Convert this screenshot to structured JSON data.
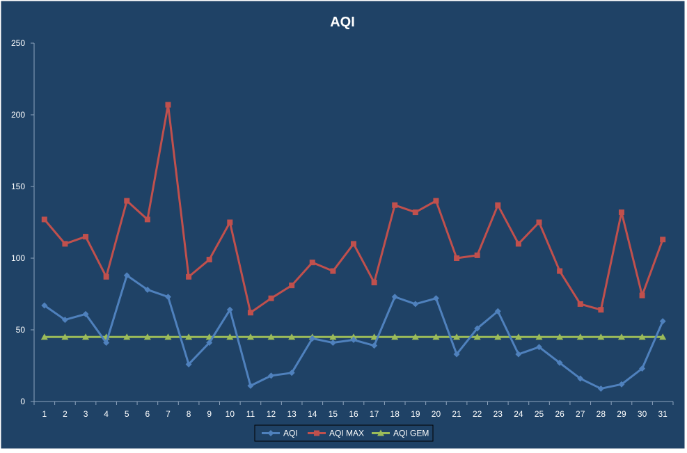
{
  "colors": {
    "background": "#1F4266",
    "frame": "#FFFFFF",
    "text": "#FFFFFF",
    "axis": "#8EA4BD",
    "aqi": "#4F81BD",
    "aqi_max": "#C0504D",
    "aqi_gem": "#9BBB59"
  },
  "chart_data": {
    "type": "line",
    "title": "AQI",
    "xlabel": "",
    "ylabel": "",
    "ylim": [
      0,
      250
    ],
    "yticks": [
      0,
      50,
      100,
      150,
      200,
      250
    ],
    "grid": false,
    "legend_position": "bottom",
    "categories": [
      "1",
      "2",
      "3",
      "4",
      "5",
      "6",
      "7",
      "8",
      "9",
      "10",
      "11",
      "12",
      "13",
      "14",
      "15",
      "16",
      "17",
      "18",
      "19",
      "20",
      "21",
      "22",
      "23",
      "24",
      "25",
      "26",
      "27",
      "28",
      "29",
      "30",
      "31"
    ],
    "series": [
      {
        "name": "AQI",
        "marker": "diamond",
        "color": "#4F81BD",
        "values": [
          67,
          57,
          61,
          41,
          88,
          78,
          73,
          26,
          41,
          64,
          11,
          18,
          20,
          44,
          41,
          43,
          39,
          73,
          68,
          72,
          33,
          51,
          63,
          33,
          38,
          27,
          16,
          9,
          12,
          23,
          56
        ]
      },
      {
        "name": "AQI MAX",
        "marker": "square",
        "color": "#C0504D",
        "values": [
          127,
          110,
          115,
          87,
          140,
          127,
          207,
          87,
          99,
          125,
          62,
          72,
          81,
          97,
          91,
          110,
          83,
          137,
          132,
          140,
          100,
          102,
          137,
          110,
          125,
          91,
          68,
          64,
          132,
          74,
          113
        ]
      },
      {
        "name": "AQI GEM",
        "marker": "triangle",
        "color": "#9BBB59",
        "values": [
          45,
          45,
          45,
          45,
          45,
          45,
          45,
          45,
          45,
          45,
          45,
          45,
          45,
          45,
          45,
          45,
          45,
          45,
          45,
          45,
          45,
          45,
          45,
          45,
          45,
          45,
          45,
          45,
          45,
          45,
          45
        ]
      }
    ]
  }
}
